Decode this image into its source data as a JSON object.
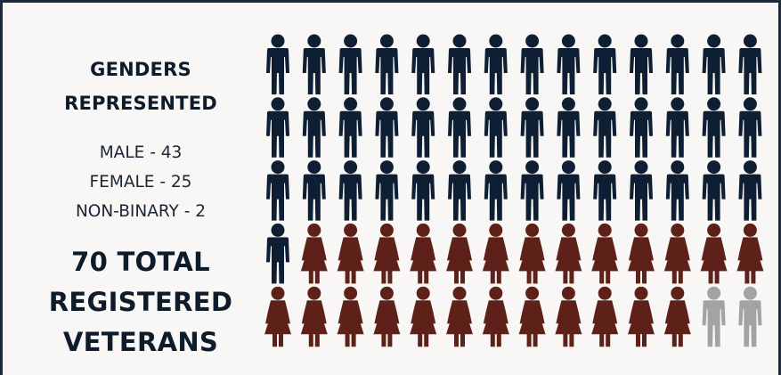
{
  "heading": {
    "line1": "GENDERS",
    "line2": "REPRESENTED"
  },
  "counts": {
    "male": "MALE - 43",
    "female": "FEMALE - 25",
    "nonbinary": "NON-BINARY - 2"
  },
  "total": {
    "line1": "70 TOTAL",
    "line2": "REGISTERED",
    "line3": "VETERANS"
  },
  "colors": {
    "male": "#0e1f33",
    "female": "#5e2119",
    "nonbinary": "#a3a3a3",
    "background": "#f8f7f5",
    "border": "#1e293b"
  },
  "chart_data": {
    "type": "pictogram",
    "categories": [
      "MALE",
      "FEMALE",
      "NON-BINARY"
    ],
    "values": [
      43,
      25,
      2
    ],
    "total": 70,
    "columns": 14,
    "rows": 5,
    "icons": [
      "male-figure",
      "female-figure",
      "person-figure"
    ]
  }
}
